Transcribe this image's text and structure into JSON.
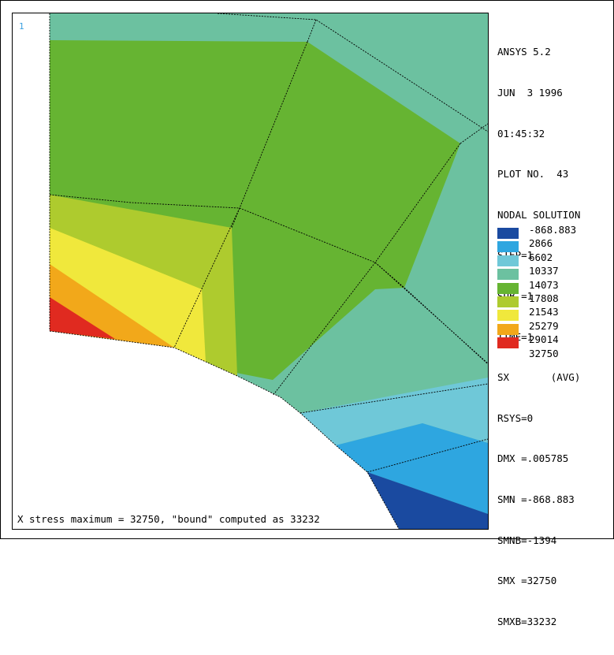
{
  "window_number": "1",
  "info_lines": [
    "ANSYS 5.2",
    "JUN  3 1996",
    "01:45:32",
    "PLOT NO.  43",
    "NODAL SOLUTION",
    "STEP=1",
    "SUB =1",
    "TIME=1",
    "SX       (AVG)",
    "RSYS=0",
    "DMX =.005785",
    "SMN =-868.883",
    "SMNB=-1394",
    "SMX =32750",
    "SMXB=33232"
  ],
  "legend": {
    "levels": [
      "-868.883",
      "2866",
      "6602",
      "10337",
      "14073",
      "17808",
      "21543",
      "25279",
      "29014",
      "32750"
    ],
    "colors": [
      "#1a4aa0",
      "#2ea6e0",
      "#6fc8d8",
      "#6cc1a0",
      "#66b432",
      "#aecb2e",
      "#f0e83c",
      "#f2a81a",
      "#e02a20"
    ]
  },
  "caption": "X stress maximum = 32750, \"bound\" computed as 33232"
}
